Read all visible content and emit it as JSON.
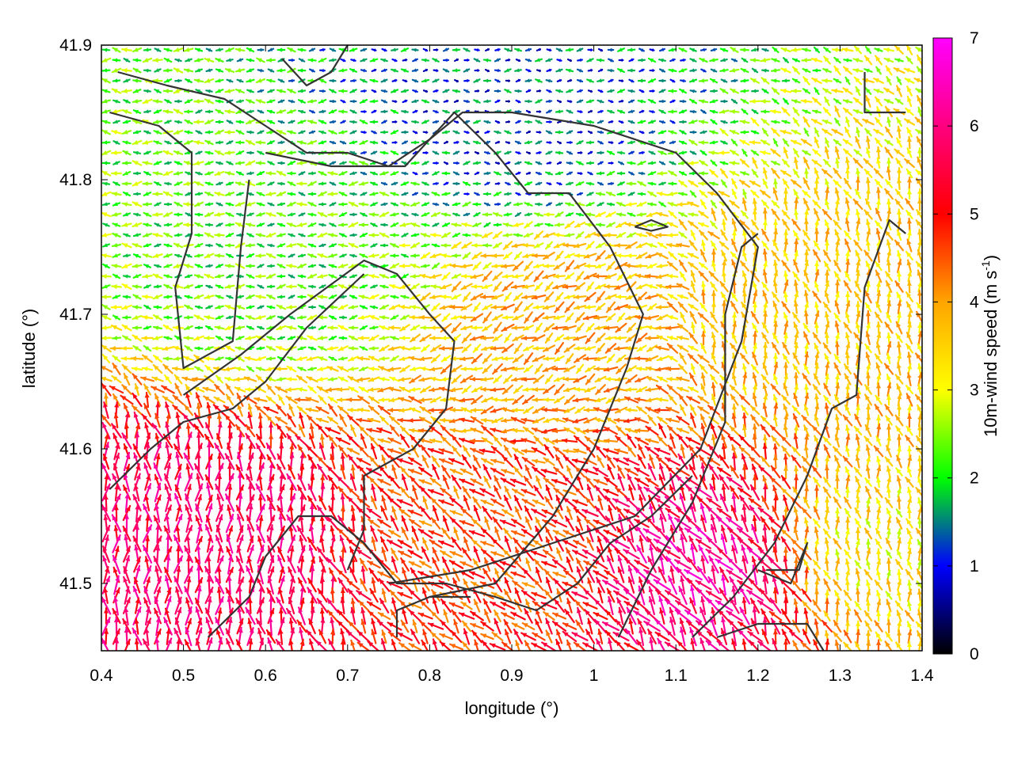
{
  "chart_data": {
    "type": "vector-field",
    "xlabel": "longitude (°)",
    "ylabel": "latitude (°)",
    "xlim": [
      0.4,
      1.4
    ],
    "ylim": [
      41.45,
      41.9
    ],
    "x_ticks": [
      "0.4",
      "0.5",
      "0.6",
      "0.7",
      "0.8",
      "0.9",
      "1",
      "1.1",
      "1.2",
      "1.3",
      "1.4"
    ],
    "y_ticks": [
      "41.5",
      "41.6",
      "41.7",
      "41.8",
      "41.9"
    ],
    "colorbar": {
      "label_main": "10m-wind speed (m s",
      "label_sup": "-1",
      "label_close": ")",
      "min": 0,
      "max": 7,
      "ticks": [
        "0",
        "1",
        "2",
        "3",
        "4",
        "5",
        "6",
        "7"
      ],
      "colors": [
        "#000000",
        "#0000ff",
        "#00ff00",
        "#ffff00",
        "#ffa500",
        "#ff0000",
        "#ff00ff"
      ]
    },
    "wind_regions": [
      {
        "name": "calm-north",
        "lon": [
          0.4,
          1.4
        ],
        "lat": [
          41.78,
          41.9
        ],
        "speed": 1.2,
        "dir_deg": 180
      },
      {
        "name": "west-plateau",
        "lon": [
          0.4,
          0.85
        ],
        "lat": [
          41.68,
          41.8
        ],
        "speed": 2.2,
        "dir_deg": 180
      },
      {
        "name": "central-basin",
        "lon": [
          0.8,
          1.1
        ],
        "lat": [
          41.62,
          41.77
        ],
        "speed": 3.8,
        "dir_deg": 210
      },
      {
        "name": "east-plain",
        "lon": [
          1.1,
          1.4
        ],
        "lat": [
          41.6,
          41.8
        ],
        "speed": 3.6,
        "dir_deg": 100
      },
      {
        "name": "south-west-jet",
        "lon": [
          0.4,
          0.65
        ],
        "lat": [
          41.45,
          41.62
        ],
        "speed": 5.8,
        "dir_deg": 90
      },
      {
        "name": "south-central",
        "lon": [
          0.65,
          1.1
        ],
        "lat": [
          41.45,
          41.6
        ],
        "speed": 4.6,
        "dir_deg": 135
      },
      {
        "name": "south-east-jet",
        "lon": [
          1.05,
          1.25
        ],
        "lat": [
          41.45,
          41.58
        ],
        "speed": 6.2,
        "dir_deg": 125
      },
      {
        "name": "south-east-edge",
        "lon": [
          1.25,
          1.4
        ],
        "lat": [
          41.45,
          41.6
        ],
        "speed": 3.2,
        "dir_deg": 100
      }
    ],
    "contours": [
      {
        "name": "ridge-north-west",
        "points": [
          [
            0.42,
            41.88
          ],
          [
            0.48,
            41.87
          ],
          [
            0.55,
            41.86
          ],
          [
            0.6,
            41.84
          ],
          [
            0.65,
            41.82
          ],
          [
            0.7,
            41.82
          ],
          [
            0.75,
            41.81
          ],
          [
            0.8,
            41.83
          ],
          [
            0.84,
            41.85
          ],
          [
            0.9,
            41.85
          ],
          [
            1.0,
            41.84
          ],
          [
            1.1,
            41.82
          ],
          [
            1.15,
            41.79
          ],
          [
            1.2,
            41.75
          ],
          [
            1.18,
            41.68
          ],
          [
            1.13,
            41.6
          ],
          [
            1.05,
            41.55
          ],
          [
            0.95,
            41.53
          ],
          [
            0.85,
            41.51
          ],
          [
            0.75,
            41.5
          ]
        ]
      },
      {
        "name": "valley-loop-west",
        "points": [
          [
            0.41,
            41.85
          ],
          [
            0.47,
            41.84
          ],
          [
            0.51,
            41.82
          ],
          [
            0.51,
            41.76
          ],
          [
            0.49,
            41.72
          ],
          [
            0.5,
            41.66
          ],
          [
            0.56,
            41.68
          ],
          [
            0.57,
            41.75
          ],
          [
            0.58,
            41.8
          ]
        ]
      },
      {
        "name": "central-ridge",
        "points": [
          [
            0.6,
            41.82
          ],
          [
            0.68,
            41.81
          ],
          [
            0.77,
            41.81
          ],
          [
            0.83,
            41.85
          ],
          [
            0.88,
            41.82
          ],
          [
            0.92,
            41.79
          ],
          [
            0.97,
            41.79
          ],
          [
            1.02,
            41.75
          ],
          [
            1.06,
            41.7
          ],
          [
            1.04,
            41.66
          ],
          [
            1.0,
            41.6
          ],
          [
            0.95,
            41.55
          ],
          [
            0.88,
            41.5
          ],
          [
            0.8,
            41.49
          ]
        ]
      },
      {
        "name": "inner-basin",
        "points": [
          [
            0.5,
            41.64
          ],
          [
            0.57,
            41.67
          ],
          [
            0.63,
            41.7
          ],
          [
            0.72,
            41.74
          ],
          [
            0.76,
            41.73
          ],
          [
            0.8,
            41.7
          ],
          [
            0.83,
            41.68
          ],
          [
            0.82,
            41.63
          ],
          [
            0.78,
            41.6
          ],
          [
            0.72,
            41.58
          ],
          [
            0.72,
            41.54
          ],
          [
            0.7,
            41.51
          ]
        ]
      },
      {
        "name": "south-west-ridge",
        "points": [
          [
            0.41,
            41.57
          ],
          [
            0.46,
            41.6
          ],
          [
            0.5,
            41.62
          ],
          [
            0.56,
            41.63
          ],
          [
            0.6,
            41.65
          ],
          [
            0.65,
            41.69
          ],
          [
            0.72,
            41.73
          ]
        ]
      },
      {
        "name": "south-west-lower",
        "points": [
          [
            0.53,
            41.46
          ],
          [
            0.58,
            41.49
          ],
          [
            0.6,
            41.52
          ],
          [
            0.64,
            41.55
          ],
          [
            0.68,
            41.55
          ],
          [
            0.72,
            41.53
          ],
          [
            0.76,
            41.5
          ],
          [
            0.82,
            41.5
          ],
          [
            0.88,
            41.49
          ],
          [
            0.93,
            41.48
          ],
          [
            0.98,
            41.5
          ],
          [
            1.02,
            41.53
          ],
          [
            1.07,
            41.55
          ],
          [
            1.12,
            41.58
          ]
        ]
      },
      {
        "name": "east-ridge",
        "points": [
          [
            1.03,
            41.46
          ],
          [
            1.07,
            41.51
          ],
          [
            1.12,
            41.56
          ],
          [
            1.16,
            41.62
          ],
          [
            1.16,
            41.7
          ],
          [
            1.18,
            41.75
          ],
          [
            1.2,
            41.76
          ]
        ]
      },
      {
        "name": "far-east-ridge",
        "points": [
          [
            1.12,
            41.46
          ],
          [
            1.17,
            41.49
          ],
          [
            1.22,
            41.53
          ],
          [
            1.26,
            41.58
          ],
          [
            1.29,
            41.63
          ],
          [
            1.32,
            41.64
          ],
          [
            1.33,
            41.72
          ],
          [
            1.36,
            41.77
          ],
          [
            1.38,
            41.76
          ]
        ]
      },
      {
        "name": "south-east-loop",
        "points": [
          [
            1.15,
            41.46
          ],
          [
            1.2,
            41.47
          ],
          [
            1.26,
            41.47
          ],
          [
            1.28,
            41.45
          ]
        ]
      },
      {
        "name": "small-loop-east",
        "points": [
          [
            1.2,
            41.51
          ],
          [
            1.24,
            41.5
          ],
          [
            1.26,
            41.53
          ],
          [
            1.25,
            41.51
          ],
          [
            1.21,
            41.51
          ]
        ]
      },
      {
        "name": "north-east-line",
        "points": [
          [
            1.33,
            41.88
          ],
          [
            1.33,
            41.85
          ],
          [
            1.38,
            41.85
          ]
        ]
      },
      {
        "name": "north-stub-west",
        "points": [
          [
            0.62,
            41.89
          ],
          [
            0.65,
            41.87
          ],
          [
            0.68,
            41.88
          ],
          [
            0.7,
            41.9
          ]
        ]
      },
      {
        "name": "small-loop-centre",
        "points": [
          [
            1.05,
            41.765
          ],
          [
            1.07,
            41.77
          ],
          [
            1.09,
            41.765
          ],
          [
            1.07,
            41.762
          ],
          [
            1.05,
            41.765
          ]
        ]
      },
      {
        "name": "south-stub",
        "points": [
          [
            0.76,
            41.46
          ],
          [
            0.76,
            41.48
          ],
          [
            0.8,
            41.49
          ],
          [
            0.85,
            41.49
          ]
        ]
      }
    ]
  }
}
